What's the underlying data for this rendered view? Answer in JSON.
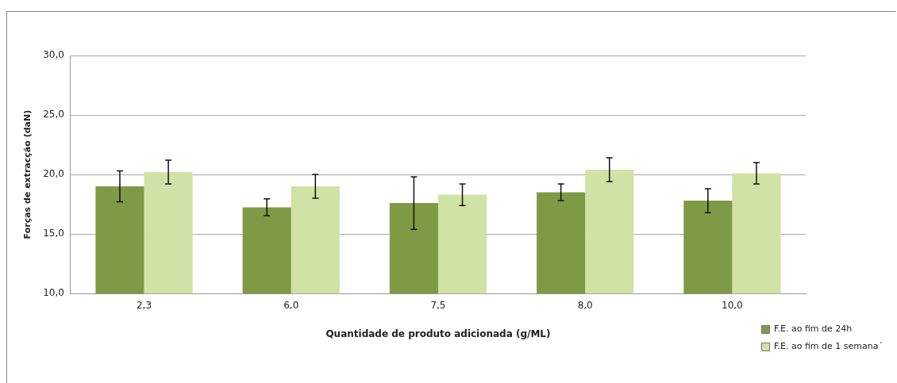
{
  "chart_data": {
    "type": "bar",
    "xlabel": "Quantidade de produto adicionada (g/ML)",
    "ylabel": "Forças de extracção (daN)",
    "categories": [
      "2,3",
      "6,0",
      "7,5",
      "8,0",
      "10,0"
    ],
    "series": [
      {
        "name": "F.E. ao fim de 24h",
        "color": "#7f9a45",
        "values": [
          19.0,
          17.25,
          17.6,
          18.5,
          17.8
        ],
        "errors": [
          1.3,
          0.7,
          2.2,
          0.7,
          1.0
        ]
      },
      {
        "name": "F.E. ao fim de 1 semana´",
        "color": "#d0e2a5",
        "values": [
          20.2,
          19.0,
          18.3,
          20.4,
          20.1
        ],
        "errors": [
          1.0,
          1.0,
          0.9,
          1.0,
          0.9
        ]
      }
    ],
    "ylim": [
      10,
      30
    ],
    "yticks": [
      {
        "value": 10,
        "label": "10,0"
      },
      {
        "value": 15,
        "label": "15,0"
      },
      {
        "value": 20,
        "label": "20,0"
      },
      {
        "value": 25,
        "label": "25,0"
      },
      {
        "value": 30,
        "label": "30,0"
      }
    ],
    "grid": "y",
    "legend": "bottom right"
  }
}
